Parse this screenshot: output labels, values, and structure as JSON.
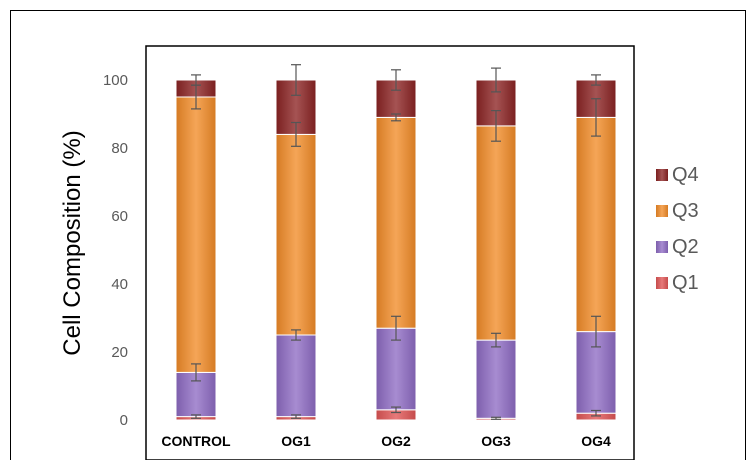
{
  "chart_data": {
    "type": "bar",
    "stacked": true,
    "categories": [
      "CONTROL",
      "OG1",
      "OG2",
      "OG3",
      "OG4"
    ],
    "ylabel": "Cell Composition (%)",
    "xlabel": "",
    "ylim": [
      0,
      100
    ],
    "yticks": [
      "0",
      "20",
      "40",
      "60",
      "80",
      "100"
    ],
    "legend_position": "right",
    "series": [
      {
        "name": "Q1",
        "color": "#e05555",
        "values": [
          1,
          1,
          3,
          0.5,
          2
        ],
        "errors": [
          0.5,
          0.5,
          0.8,
          0.3,
          0.8
        ]
      },
      {
        "name": "Q2",
        "color": "#8e6bc4",
        "values": [
          13,
          24,
          24,
          23,
          24
        ],
        "errors": [
          2.5,
          1.5,
          3.5,
          2,
          4.5
        ]
      },
      {
        "name": "Q3",
        "color": "#f28c28",
        "values": [
          81,
          59,
          62,
          63,
          63
        ],
        "errors": [
          3.5,
          3.5,
          1,
          4.5,
          5.5
        ]
      },
      {
        "name": "Q4",
        "color": "#8b2323",
        "values": [
          5,
          16,
          11,
          13.5,
          11
        ],
        "errors": [
          1.5,
          4.5,
          3,
          3.5,
          1.5
        ]
      }
    ]
  }
}
